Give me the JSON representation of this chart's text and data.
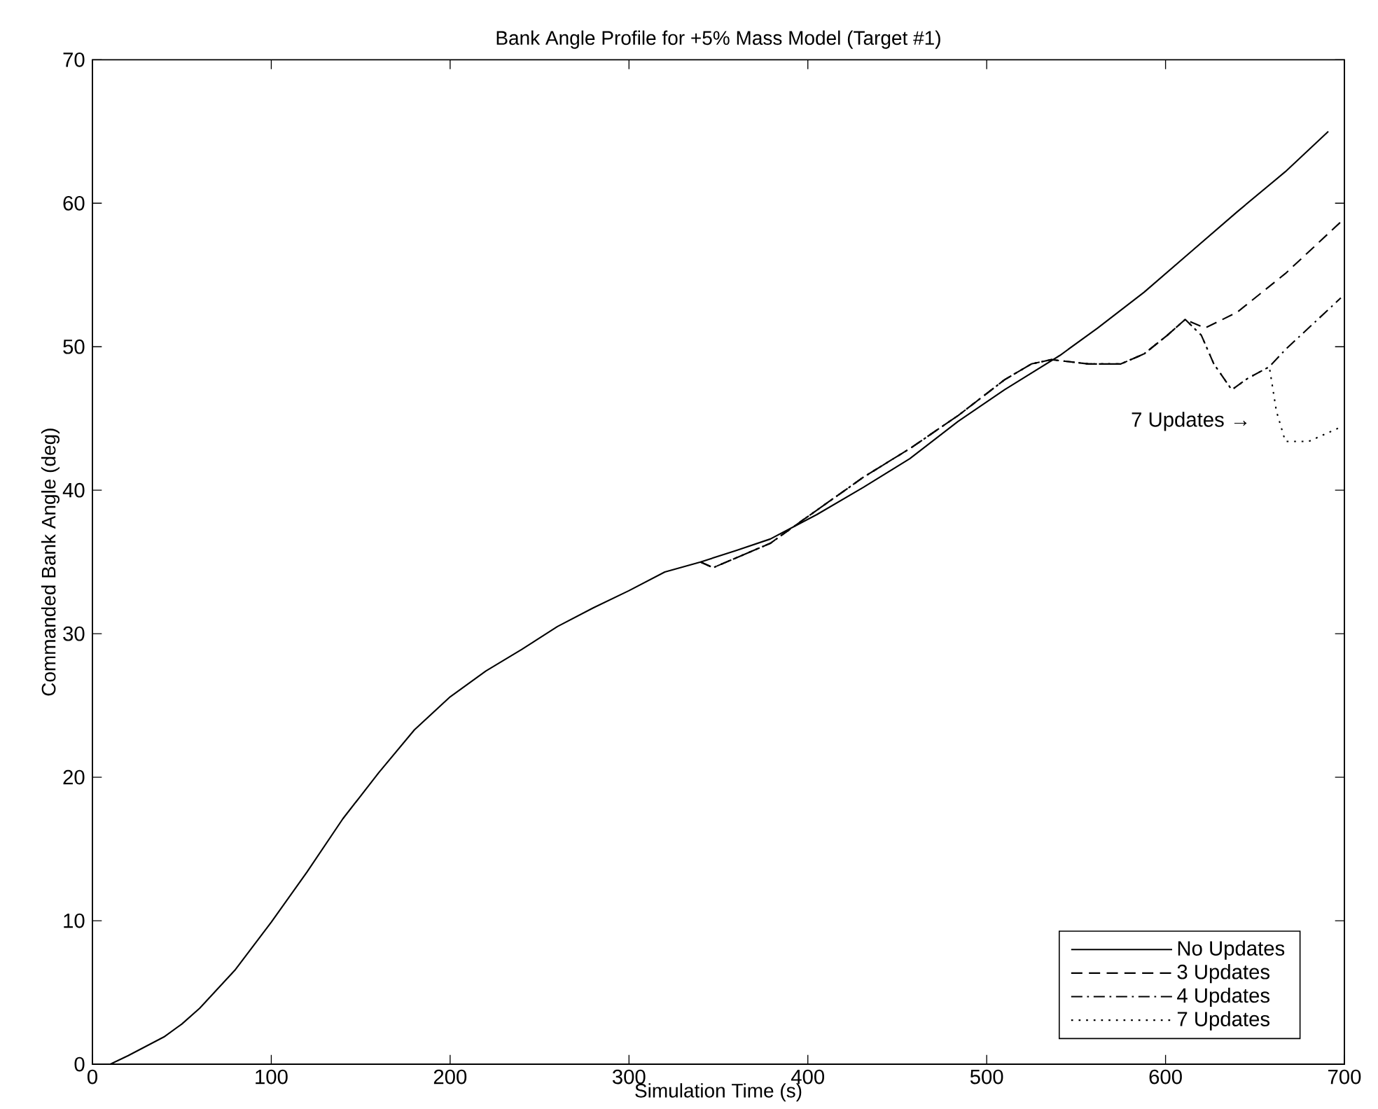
{
  "chart_data": {
    "type": "line",
    "title": "Bank Angle Profile for +5% Mass Model (Target #1)",
    "xlabel": "Simulation Time (s)",
    "ylabel": "Commanded Bank Angle (deg)",
    "xlim": [
      0,
      700
    ],
    "ylim": [
      0,
      70
    ],
    "xticks": [
      0,
      100,
      200,
      300,
      400,
      500,
      600,
      700
    ],
    "yticks": [
      0,
      10,
      20,
      30,
      40,
      50,
      60,
      70
    ],
    "grid": false,
    "legend": "bottom right",
    "marker": "none",
    "series": [
      {
        "name": "No Updates",
        "color": "#000000",
        "line_style": "solid",
        "x": [
          10,
          20,
          40,
          50,
          60,
          80,
          100,
          120,
          140,
          160,
          180,
          200,
          220,
          240,
          260,
          280,
          300,
          320,
          340,
          360,
          379,
          405,
          431,
          457,
          484,
          510,
          541,
          562,
          588,
          614,
          640,
          667,
          691
        ],
        "values": [
          0,
          0.6,
          1.9,
          2.8,
          3.9,
          6.6,
          9.9,
          13.4,
          17.1,
          20.3,
          23.3,
          25.6,
          27.4,
          28.9,
          30.5,
          31.8,
          33.0,
          34.3,
          35.0,
          35.8,
          36.6,
          38.3,
          40.2,
          42.2,
          44.8,
          47.0,
          49.4,
          51.3,
          53.8,
          56.6,
          59.4,
          62.2,
          65.0
        ]
      },
      {
        "name": "3 Updates",
        "color": "#000000",
        "line_style": "dashed",
        "x": [
          340,
          347,
          379,
          397,
          431,
          457,
          484,
          510,
          525,
          536,
          557,
          575,
          588,
          601,
          611,
          622,
          640,
          667,
          698
        ],
        "values": [
          35.0,
          34.6,
          36.3,
          37.9,
          40.9,
          42.9,
          45.2,
          47.7,
          48.8,
          49.1,
          48.8,
          48.8,
          49.5,
          50.8,
          51.9,
          51.3,
          52.4,
          55.1,
          58.7
        ]
      },
      {
        "name": "4 Updates",
        "color": "#000000",
        "line_style": "dashdot",
        "x": [
          340,
          347,
          379,
          397,
          431,
          457,
          484,
          510,
          525,
          536,
          557,
          575,
          588,
          601,
          611,
          620,
          627,
          637,
          646,
          658,
          667,
          698
        ],
        "values": [
          35.0,
          34.6,
          36.3,
          37.9,
          40.9,
          42.9,
          45.2,
          47.7,
          48.8,
          49.1,
          48.8,
          48.8,
          49.5,
          50.8,
          51.9,
          50.8,
          48.8,
          47.0,
          47.8,
          48.6,
          49.8,
          53.4
        ]
      },
      {
        "name": "7 Updates",
        "color": "#000000",
        "line_style": "dotted",
        "x": [
          340,
          347,
          379,
          397,
          431,
          457,
          484,
          510,
          525,
          536,
          557,
          575,
          588,
          601,
          611,
          620,
          627,
          637,
          646,
          658,
          662,
          667,
          680,
          698
        ],
        "values": [
          35.0,
          34.6,
          36.3,
          37.9,
          40.9,
          42.9,
          45.2,
          47.7,
          48.8,
          49.1,
          48.8,
          48.8,
          49.5,
          50.8,
          51.9,
          50.8,
          48.8,
          47.0,
          47.8,
          48.6,
          45.5,
          43.4,
          43.4,
          44.4
        ]
      }
    ],
    "annotations": [
      "7 Updates →"
    ]
  }
}
